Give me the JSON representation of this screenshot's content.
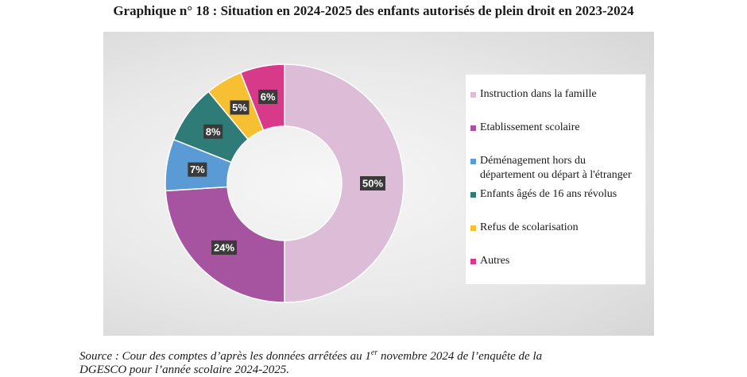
{
  "title": "Graphique n° 18 : Situation en 2024-2025 des enfants autorisés de plein droit en 2023-2024",
  "chart_data": {
    "type": "pie",
    "donut": true,
    "categories": [
      "Instruction dans la famille",
      "Etablissement scolaire",
      "Déménagement hors du département ou départ à l'étranger",
      "Enfants âgés de 16 ans révolus",
      "Refus de scolarisation",
      "Autres"
    ],
    "values": [
      50,
      24,
      7,
      8,
      5,
      6
    ],
    "labels": [
      "50%",
      "24%",
      "7%",
      "8%",
      "5%",
      "6%"
    ],
    "colors": [
      "#dcbcd6",
      "#a654a0",
      "#5b9bd5",
      "#2e7b78",
      "#f7c033",
      "#d83a8a"
    ],
    "legend_position": "right"
  },
  "legend": {
    "items": [
      {
        "line1": "Instruction dans la famille",
        "line2": ""
      },
      {
        "line1": "Etablissement scolaire",
        "line2": ""
      },
      {
        "line1": "Déménagement hors du",
        "line2": "département ou départ à l'étranger"
      },
      {
        "line1": "Enfants âgés de 16 ans révolus",
        "line2": ""
      },
      {
        "line1": "Refus de scolarisation",
        "line2": ""
      },
      {
        "line1": "Autres",
        "line2": ""
      }
    ]
  },
  "source": {
    "prefix": "Source : Cour des comptes d’après les données arrêtées au 1",
    "superscript": "er",
    "suffix": " novembre 2024 de l’enquête de la",
    "line2": "DGESCO pour l’année scolaire 2024-2025."
  }
}
